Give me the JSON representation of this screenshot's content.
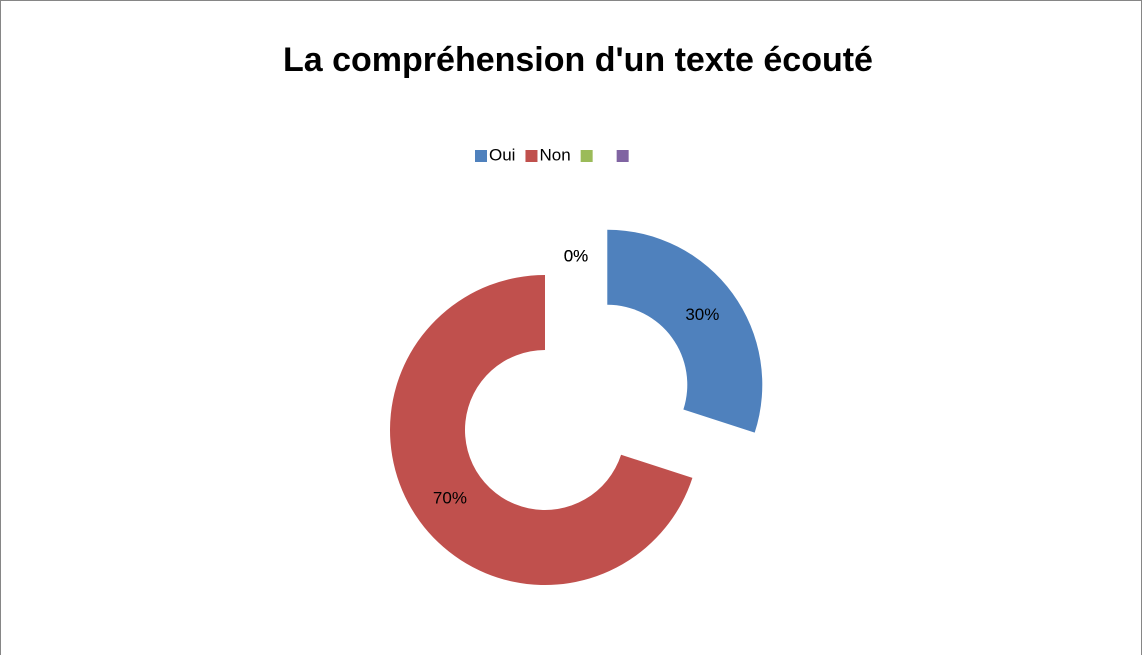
{
  "chart_data": {
    "type": "doughnut",
    "title": "La compréhension d'un texte écouté",
    "categories": [
      "Oui",
      "Non",
      null,
      null
    ],
    "values": [
      30,
      70,
      0,
      0
    ],
    "value_labels": [
      "30%",
      "70%",
      "0%",
      "0%"
    ],
    "colors": [
      "#4f81bd",
      "#c0504d",
      "#9bbb59",
      "#8064a2"
    ],
    "legend": "top"
  }
}
